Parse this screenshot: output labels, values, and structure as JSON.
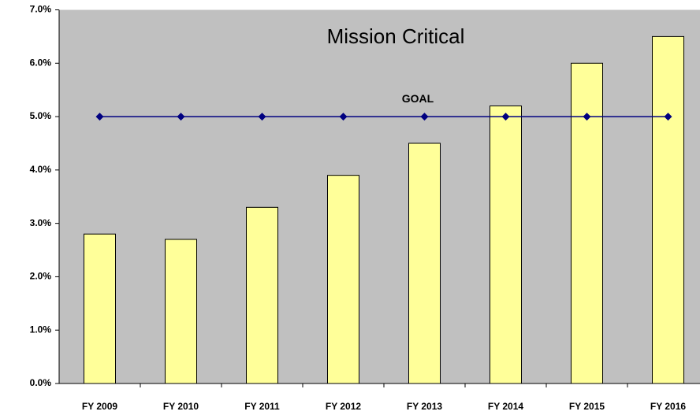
{
  "chart_data": {
    "type": "bar",
    "title": "Mission Critical",
    "categories": [
      "FY 2009",
      "FY 2010",
      "FY 2011",
      "FY 2012",
      "FY 2013",
      "FY 2014",
      "FY 2015",
      "FY 2016"
    ],
    "series": [
      {
        "type": "bar",
        "color": "#ffff99",
        "values": [
          2.8,
          2.7,
          3.3,
          3.9,
          4.5,
          5.2,
          6.0,
          6.5
        ]
      },
      {
        "type": "line",
        "name": "GOAL",
        "color": "#000080",
        "values": [
          5.0,
          5.0,
          5.0,
          5.0,
          5.0,
          5.0,
          5.0,
          5.0
        ]
      }
    ],
    "ylim": [
      0,
      7
    ],
    "yticks": [
      {
        "value": 0,
        "label": "0.0%"
      },
      {
        "value": 1,
        "label": "1.0%"
      },
      {
        "value": 2,
        "label": "2.0%"
      },
      {
        "value": 3,
        "label": "3.0%"
      },
      {
        "value": 4,
        "label": "4.0%"
      },
      {
        "value": 5,
        "label": "5.0%"
      },
      {
        "value": 6,
        "label": "6.0%"
      },
      {
        "value": 7,
        "label": "7.0%"
      }
    ],
    "plot_background": "#c0c0c0"
  }
}
